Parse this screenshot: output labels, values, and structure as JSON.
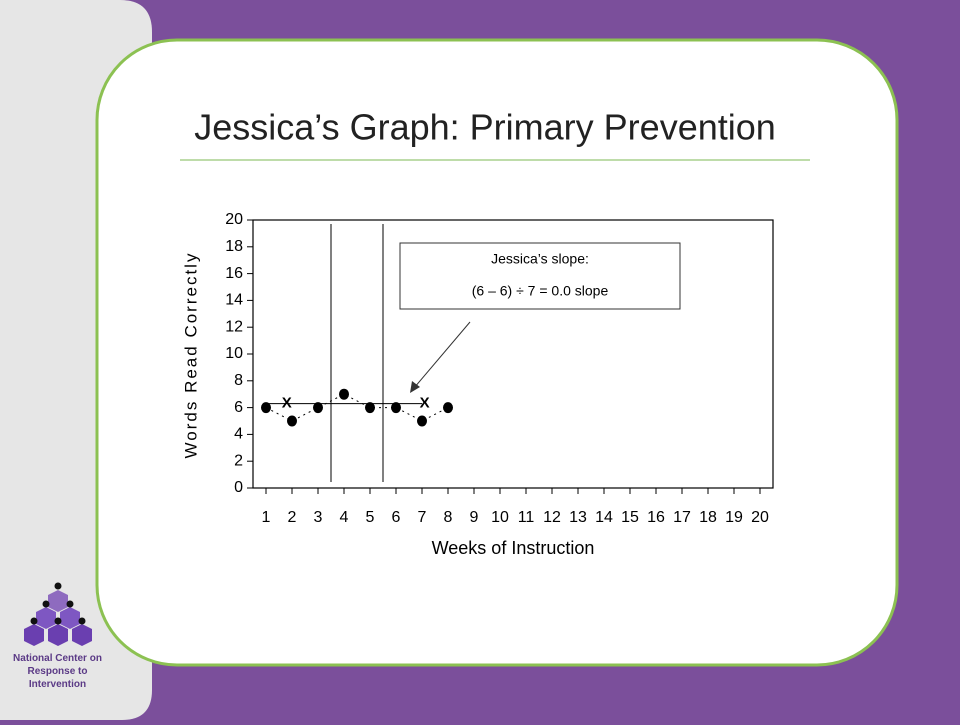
{
  "logo": "National Center on Response to Intervention",
  "chart_data": {
    "type": "line",
    "title": "Jessica’s Graph: Primary Prevention",
    "x_label": "Weeks of Instruction",
    "y_label": "Words Read Correctly",
    "x": [
      1,
      2,
      3,
      4,
      5,
      6,
      7,
      8
    ],
    "values": [
      6,
      5,
      6,
      7,
      6,
      6,
      5,
      6
    ],
    "color": "#000000",
    "xlim": [
      0.5,
      20.5
    ],
    "xticks": [
      1,
      2,
      3,
      4,
      5,
      6,
      7,
      8,
      9,
      10,
      11,
      12,
      13,
      14,
      15,
      16,
      17,
      18,
      19,
      20
    ],
    "ylim": [
      0,
      20
    ],
    "yticks": [
      0,
      2,
      4,
      6,
      8,
      10,
      12,
      14,
      16,
      18,
      20
    ],
    "phase_lines": [
      3.5,
      5.5
    ],
    "trend": {
      "x": [
        1,
        7
      ],
      "values": [
        6.3,
        6.3
      ]
    },
    "markers": {
      "label": "X",
      "x": [
        1.8,
        7.1
      ],
      "values": [
        6.3,
        6.3
      ]
    },
    "annotation": [
      "Jessica’s slope:",
      "(6 – 6) ÷ 7 = 0.0 slope"
    ]
  }
}
